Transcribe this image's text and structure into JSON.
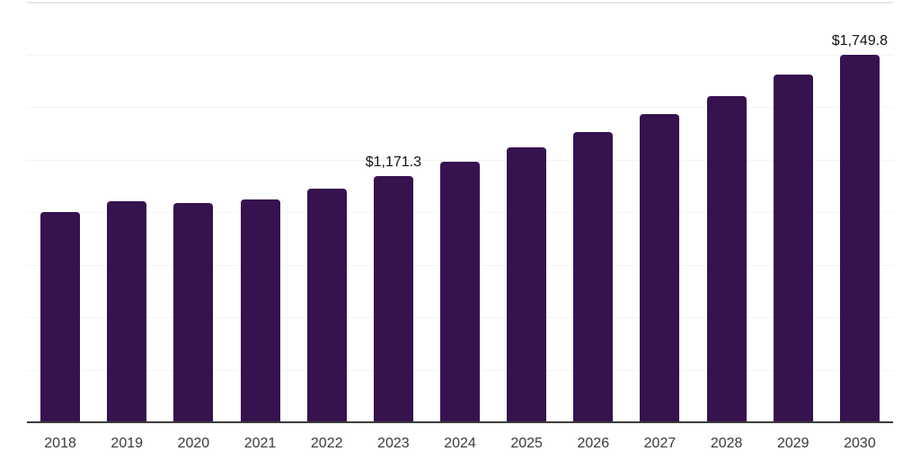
{
  "chart_data": {
    "type": "bar",
    "title": "",
    "xlabel": "",
    "ylabel": "",
    "categories": [
      "2018",
      "2019",
      "2020",
      "2021",
      "2022",
      "2023",
      "2024",
      "2025",
      "2026",
      "2027",
      "2028",
      "2029",
      "2030"
    ],
    "values": [
      1001,
      1051,
      1043,
      1060,
      1112,
      1171.3,
      1239,
      1308,
      1382,
      1467,
      1553,
      1653,
      1749.8
    ],
    "data_labels": [
      {
        "category": "2023",
        "text": "$1,171.3"
      },
      {
        "category": "2030",
        "text": "$1,749.8"
      }
    ],
    "ylim": [
      0,
      2000
    ],
    "grid_step": 250,
    "grid": true,
    "legend": false,
    "colors": {
      "bar": "#36124e",
      "axis": "#3b3b3b",
      "gridline": "#f4f4f4",
      "top_gridline": "#e7e7e7",
      "value_label": "#111111",
      "tick_label": "#3a3a3a",
      "background": "#ffffff"
    }
  }
}
